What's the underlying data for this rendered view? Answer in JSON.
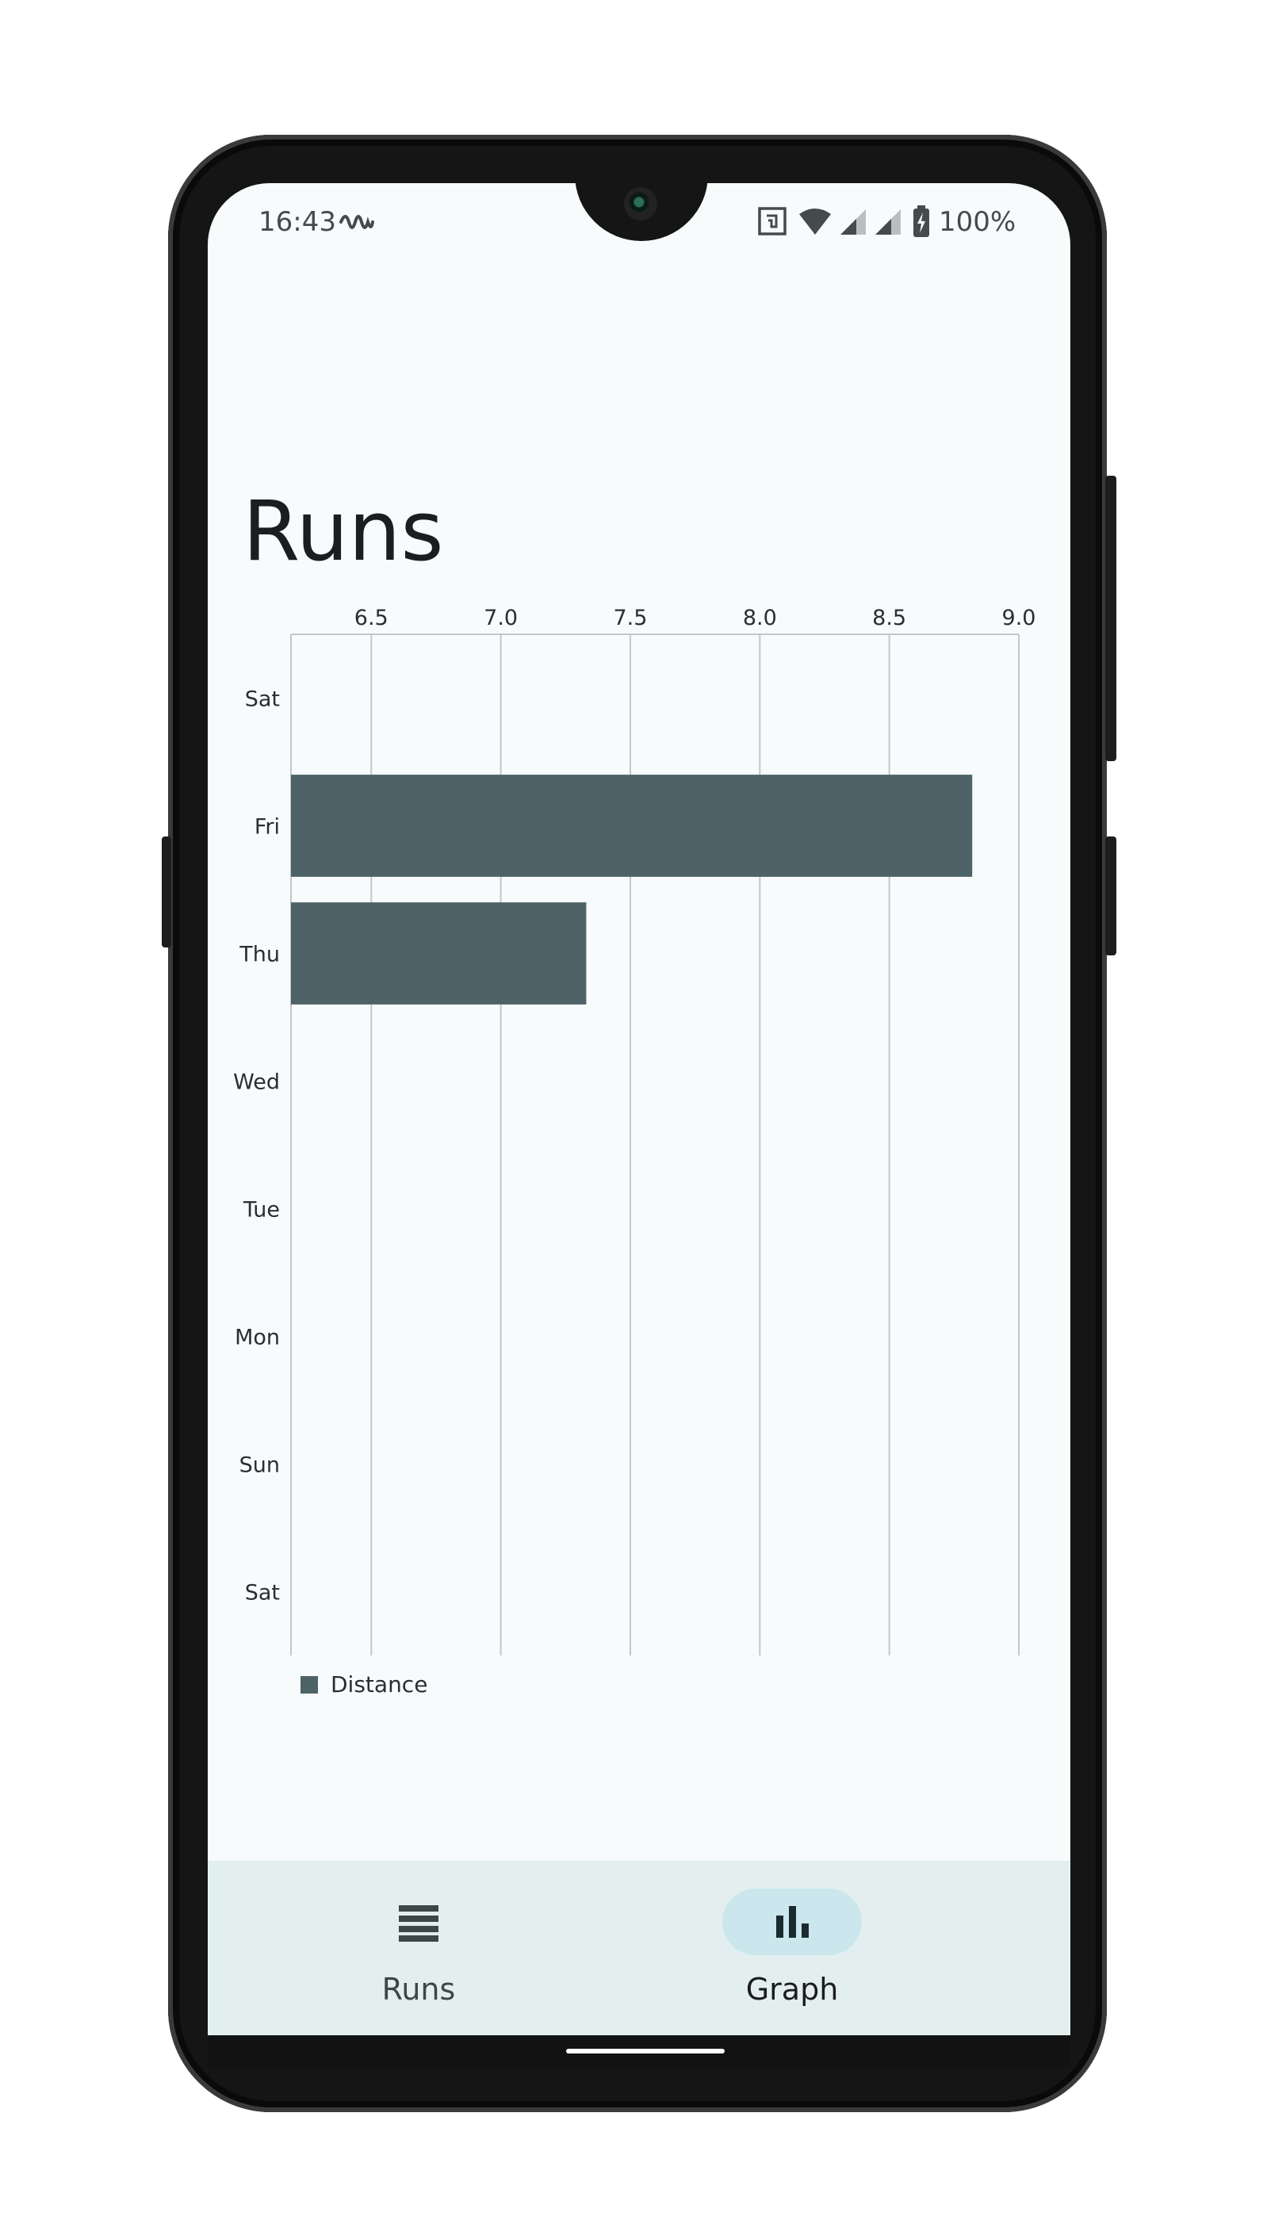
{
  "status_bar": {
    "time": "16:43",
    "battery": "100%",
    "icons": [
      "activity-icon",
      "nfc-icon",
      "wifi-icon",
      "cell-signal-icon",
      "cell-signal-icon",
      "battery-charging-icon"
    ]
  },
  "page": {
    "title": "Runs"
  },
  "chart_data": {
    "type": "bar",
    "orientation": "horizontal",
    "categories": [
      "Sat",
      "Fri",
      "Thu",
      "Wed",
      "Tue",
      "Mon",
      "Sun",
      "Sat"
    ],
    "series": [
      {
        "name": "Distance",
        "values": [
          null,
          8.82,
          7.33,
          null,
          null,
          null,
          null,
          null
        ]
      }
    ],
    "xlim": [
      6.19,
      9.0
    ],
    "x_ticks": [
      "6.5",
      "7.0",
      "7.5",
      "8.0",
      "8.5",
      "9.0"
    ],
    "x_axis_position": "top",
    "grid": true,
    "legend": "bottom-left",
    "colors": {
      "bar": "#4e6368",
      "grid": "#c4c6c7"
    }
  },
  "bottom_nav": {
    "items": [
      {
        "label": "Runs",
        "icon": "list-icon",
        "active": false
      },
      {
        "label": "Graph",
        "icon": "bar-chart-icon",
        "active": true
      }
    ]
  }
}
